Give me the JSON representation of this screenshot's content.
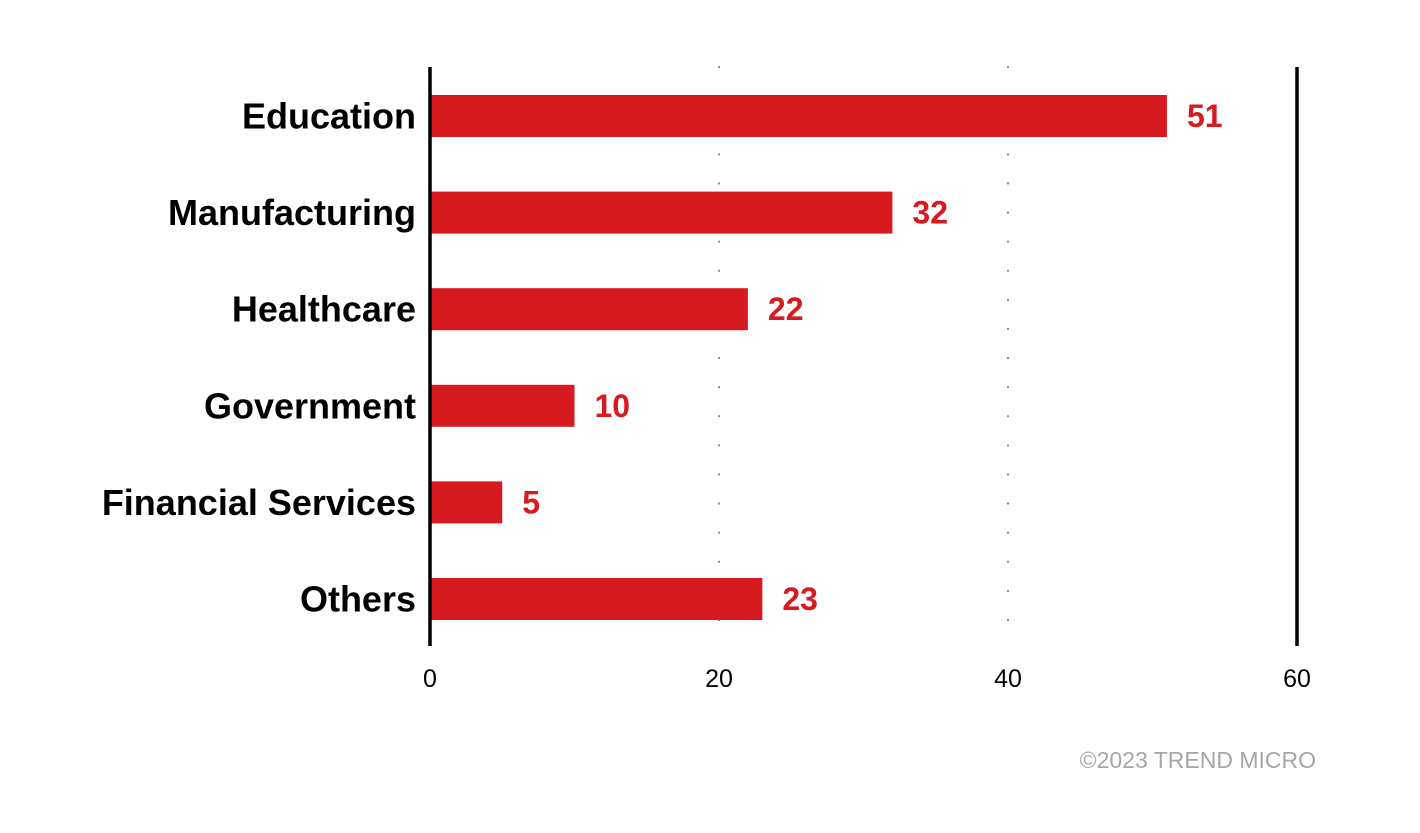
{
  "chart_data": {
    "type": "bar",
    "orientation": "horizontal",
    "categories": [
      "Education",
      "Manufacturing",
      "Healthcare",
      "Government",
      "Financial Services",
      "Others"
    ],
    "values": [
      51,
      32,
      22,
      10,
      5,
      23
    ],
    "title": "",
    "xlabel": "",
    "ylabel": "",
    "xlim": [
      0,
      60
    ],
    "x_ticks": [
      0,
      20,
      40,
      60
    ],
    "grid": "dotted vertical at 20 and 40",
    "legend": "none",
    "bar_color": "#d71920",
    "value_label_color": "#d71920"
  },
  "footer": {
    "copyright": "©2023 TREND MICRO"
  }
}
